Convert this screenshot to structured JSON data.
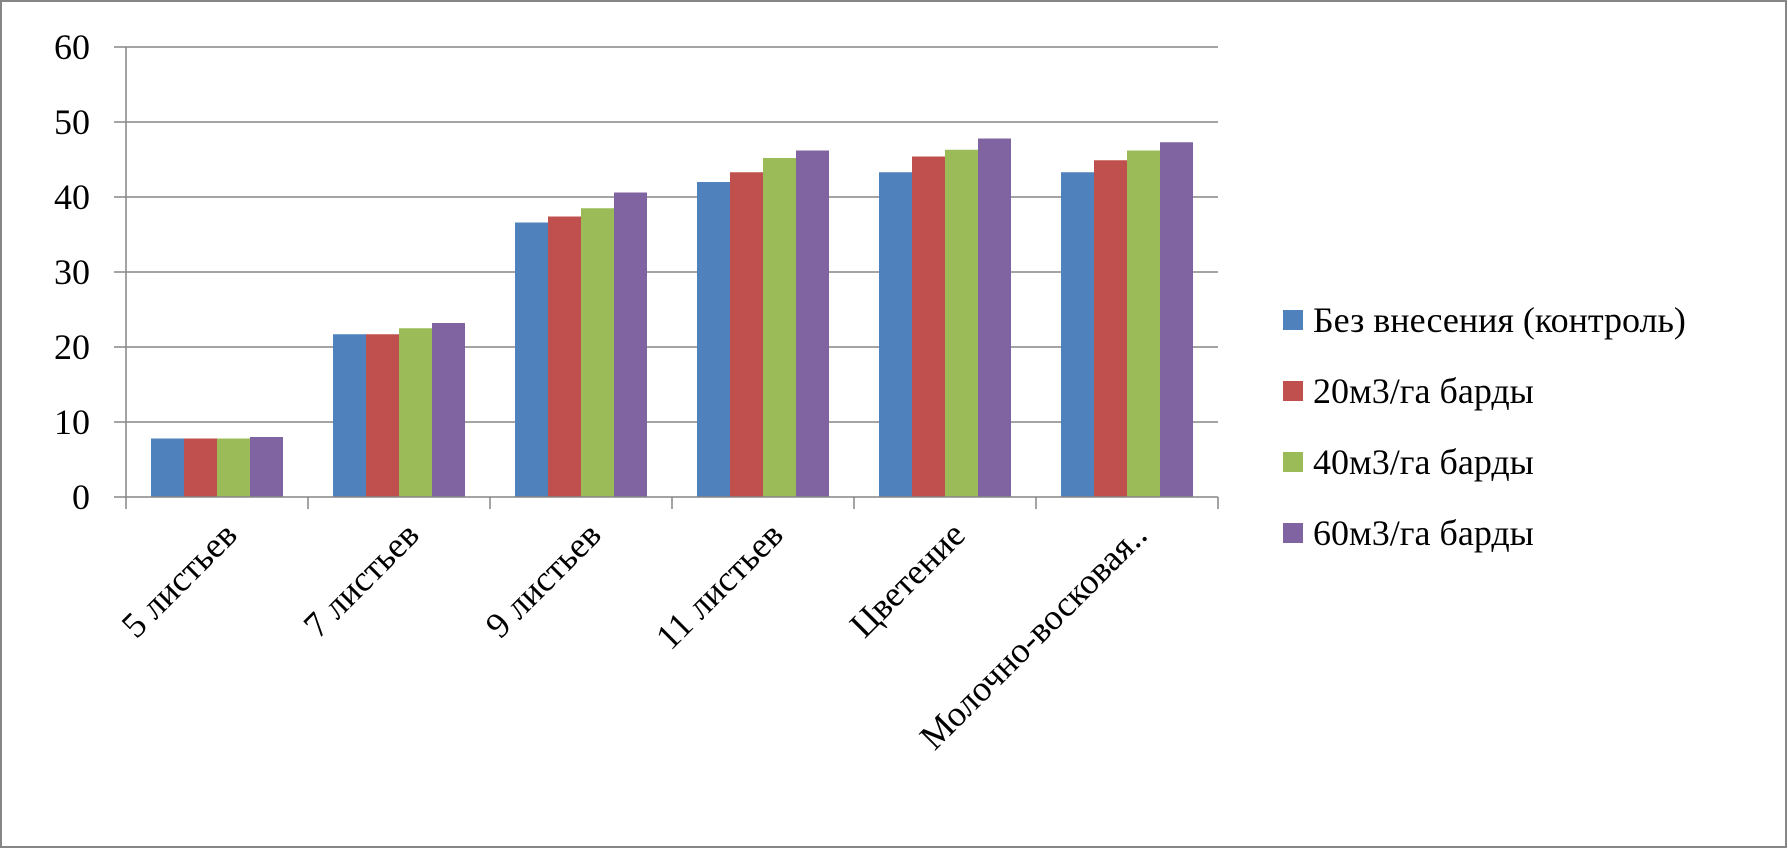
{
  "chart_data": {
    "type": "bar",
    "title": "",
    "xlabel": "",
    "ylabel": "",
    "ylim": [
      0,
      60
    ],
    "yticks": [
      0,
      10,
      20,
      30,
      40,
      50,
      60
    ],
    "grid": true,
    "legend_position": "right",
    "categories": [
      "5 листьев",
      "7 листьев",
      "9 листьев",
      "11 листьев",
      "Цветение",
      "Молочно-восковая.."
    ],
    "series": [
      {
        "name": "Без внесения (контроль)",
        "color": "#4F81BD",
        "values": [
          7.8,
          21.7,
          36.6,
          42.0,
          43.3,
          43.3
        ]
      },
      {
        "name": "20м3/га барды",
        "color": "#C0504D",
        "values": [
          7.8,
          21.7,
          37.4,
          43.3,
          45.4,
          44.9
        ]
      },
      {
        "name": "40м3/га барды",
        "color": "#9BBB59",
        "values": [
          7.8,
          22.5,
          38.5,
          45.2,
          46.3,
          46.2
        ]
      },
      {
        "name": "60м3/га барды",
        "color": "#8064A2",
        "values": [
          8.0,
          23.2,
          40.6,
          46.2,
          47.8,
          47.3
        ]
      }
    ]
  },
  "colors": {
    "gridline": "#868686",
    "axis": "#868686",
    "frame": "#868686"
  }
}
